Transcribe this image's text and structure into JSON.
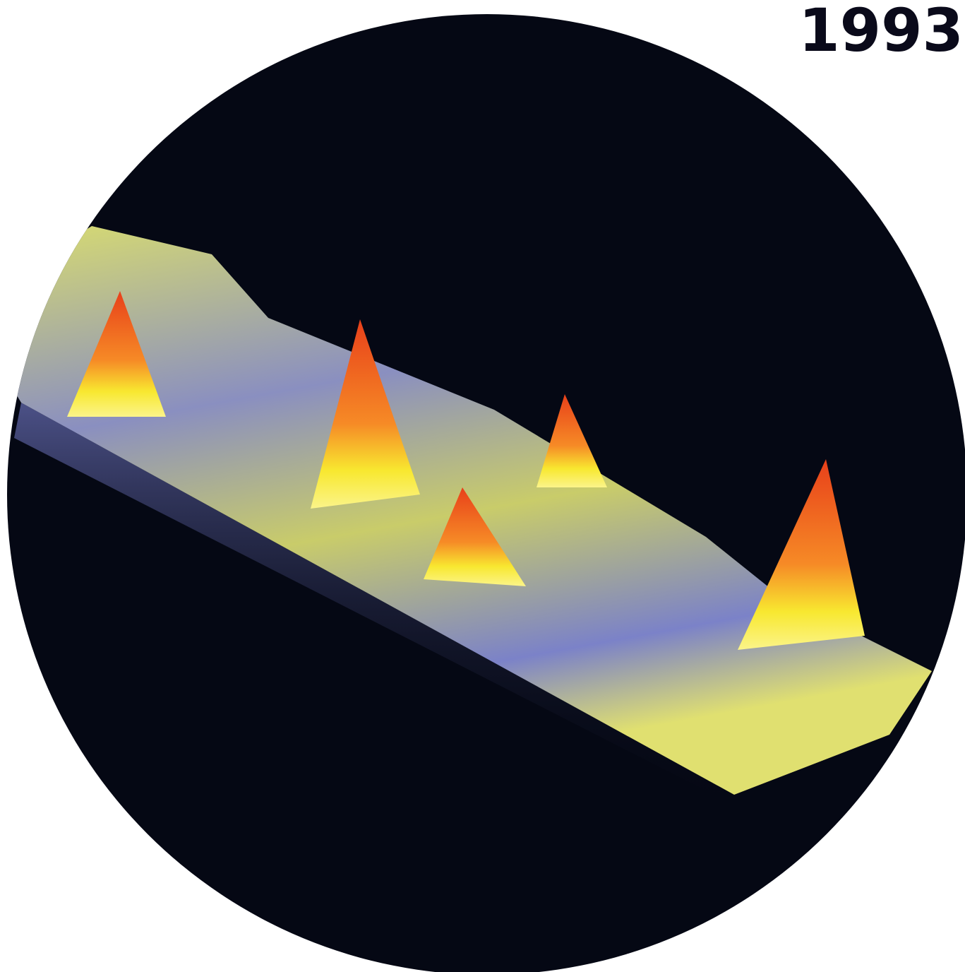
{
  "header": {
    "year": "1993"
  }
}
